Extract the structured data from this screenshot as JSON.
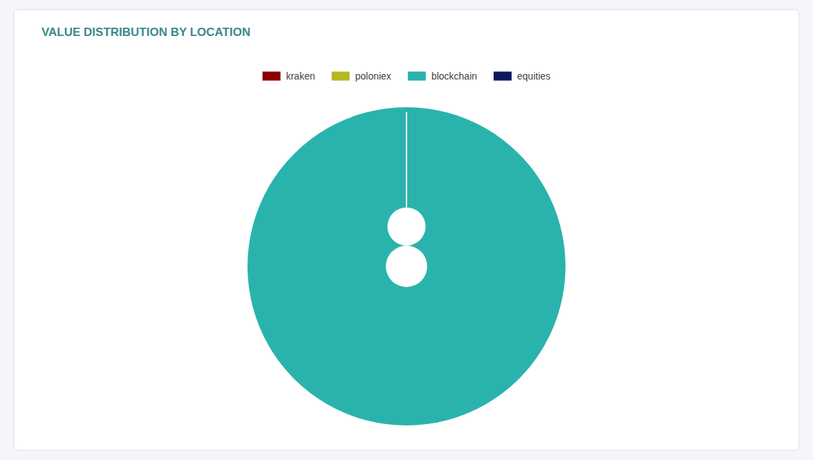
{
  "chart_data": {
    "type": "pie",
    "title": "VALUE DISTRIBUTION BY LOCATION",
    "categories": [
      "kraken",
      "poloniex",
      "blockchain",
      "equities"
    ],
    "values": [
      0.001,
      0.001,
      99.996,
      0.001
    ],
    "colors": [
      "#8b0000",
      "#b5b820",
      "#2ab3ac",
      "#0d1b5e"
    ],
    "legend": "top"
  }
}
